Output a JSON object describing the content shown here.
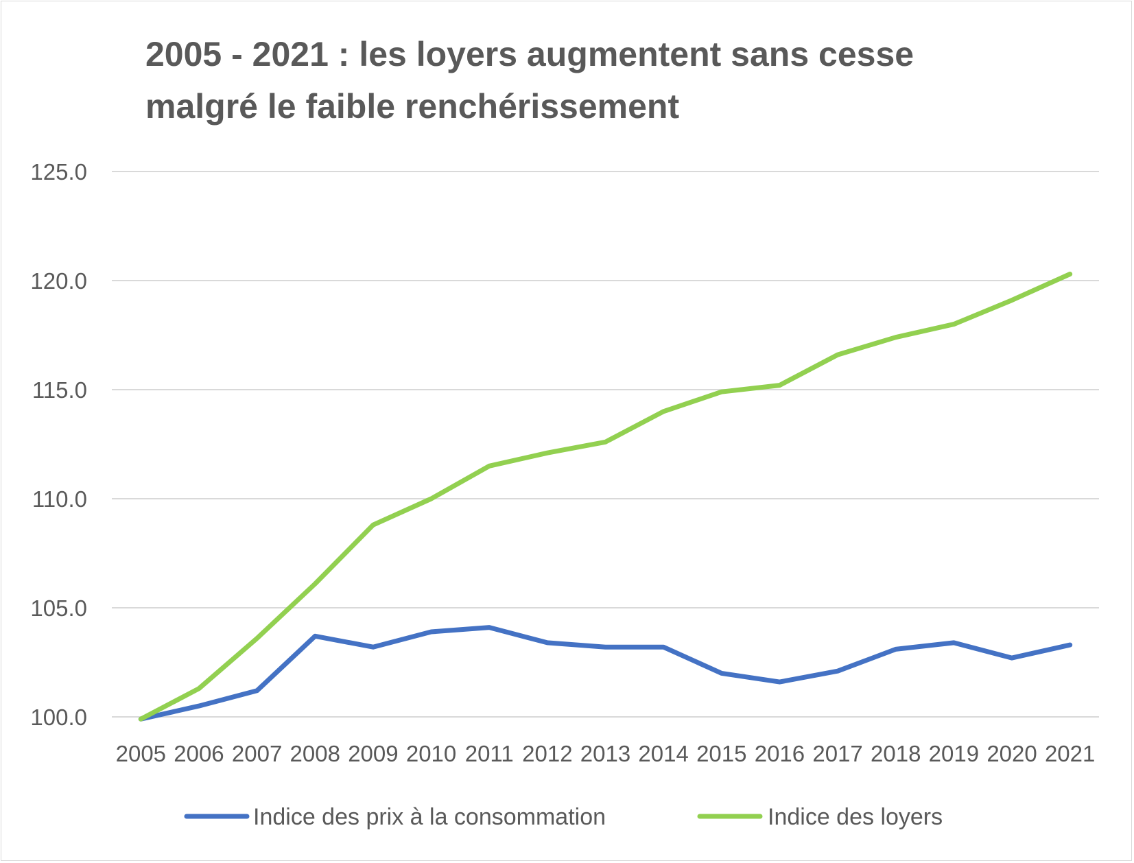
{
  "chart_data": {
    "type": "line",
    "title_lines": [
      "2005 - 2021 : les loyers augmentent sans cesse",
      "malgré le faible renchérissement"
    ],
    "categories": [
      "2005",
      "2006",
      "2007",
      "2008",
      "2009",
      "2010",
      "2011",
      "2012",
      "2013",
      "2014",
      "2015",
      "2016",
      "2017",
      "2018",
      "2019",
      "2020",
      "2021"
    ],
    "y_ticks": [
      "100.0",
      "105.0",
      "110.0",
      "115.0",
      "120.0",
      "125.0"
    ],
    "ylim": [
      100,
      125
    ],
    "grid": true,
    "legend_position": "bottom",
    "series": [
      {
        "name": "Indice des prix à la consommation",
        "color": "#4472c4",
        "values": [
          99.9,
          100.5,
          101.2,
          103.7,
          103.2,
          103.9,
          104.1,
          103.4,
          103.2,
          103.2,
          102.0,
          101.6,
          102.1,
          103.1,
          103.4,
          102.7,
          103.3
        ]
      },
      {
        "name": "Indice des loyers",
        "color": "#92d050",
        "values": [
          99.9,
          101.3,
          103.6,
          106.1,
          108.8,
          110.0,
          111.5,
          112.1,
          112.6,
          114.0,
          114.9,
          115.2,
          116.6,
          117.4,
          118.0,
          119.1,
          120.3
        ]
      }
    ]
  }
}
